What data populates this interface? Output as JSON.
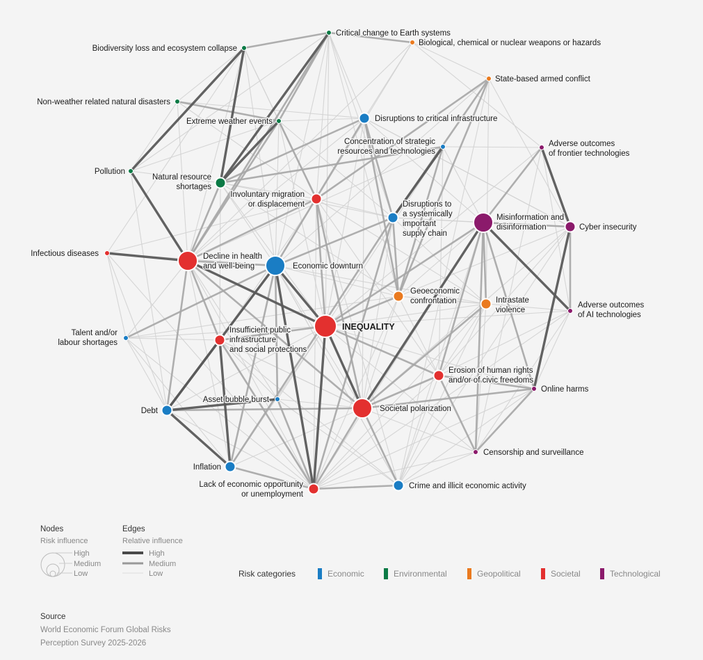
{
  "colors": {
    "Economic": "#1a7dc4",
    "Environmental": "#0b7a45",
    "Geopolitical": "#ea7a1f",
    "Societal": "#e3302f",
    "Technological": "#8b1a6b"
  },
  "nodes": [
    {
      "id": "critical-change",
      "lines": [
        "Critical change to Earth systems"
      ],
      "cat": "Environmental",
      "size": "low"
    },
    {
      "id": "biological",
      "lines": [
        "Biological, chemical or nuclear weapons or hazards"
      ],
      "cat": "Geopolitical",
      "size": "low"
    },
    {
      "id": "biodiversity",
      "lines": [
        "Biodiversity loss and ecosystem collapse"
      ],
      "cat": "Environmental",
      "size": "low"
    },
    {
      "id": "state-conflict",
      "lines": [
        "State-based armed conflict"
      ],
      "cat": "Geopolitical",
      "size": "low"
    },
    {
      "id": "non-weather",
      "lines": [
        "Non-weather related natural disasters"
      ],
      "cat": "Environmental",
      "size": "low"
    },
    {
      "id": "disruptions-infra",
      "lines": [
        "Disruptions to critical infrastructure"
      ],
      "cat": "Economic",
      "size": "medium"
    },
    {
      "id": "extreme-weather",
      "lines": [
        "Extreme weather events"
      ],
      "cat": "Environmental",
      "size": "low"
    },
    {
      "id": "concentration",
      "lines": [
        "Concentration of strategic",
        "resources and technologies"
      ],
      "cat": "Economic",
      "size": "low"
    },
    {
      "id": "frontier-tech",
      "lines": [
        "Adverse outcomes",
        "of frontier technologies"
      ],
      "cat": "Technological",
      "size": "low"
    },
    {
      "id": "pollution",
      "lines": [
        "Pollution"
      ],
      "cat": "Environmental",
      "size": "low"
    },
    {
      "id": "natural-resource",
      "lines": [
        "Natural resource",
        "shortages"
      ],
      "cat": "Environmental",
      "size": "medium"
    },
    {
      "id": "migration",
      "lines": [
        "Involuntary migration",
        "or displacement"
      ],
      "cat": "Societal",
      "size": "medium"
    },
    {
      "id": "supply-chain",
      "lines": [
        "Disruptions to",
        "a systemically",
        "important",
        "supply chain"
      ],
      "cat": "Economic",
      "size": "medium"
    },
    {
      "id": "misinformation",
      "lines": [
        "Misinformation and",
        "disinformation"
      ],
      "cat": "Technological",
      "size": "high"
    },
    {
      "id": "cyber",
      "lines": [
        "Cyber insecurity"
      ],
      "cat": "Technological",
      "size": "medium"
    },
    {
      "id": "infectious",
      "lines": [
        "Infectious diseases"
      ],
      "cat": "Societal",
      "size": "low"
    },
    {
      "id": "health",
      "lines": [
        "Decline in health",
        "and well-being"
      ],
      "cat": "Societal",
      "size": "high"
    },
    {
      "id": "downturn",
      "lines": [
        "Economic downturn"
      ],
      "cat": "Economic",
      "size": "high"
    },
    {
      "id": "geoeconomic",
      "lines": [
        "Geoeconomic",
        "confrontation"
      ],
      "cat": "Geopolitical",
      "size": "medium"
    },
    {
      "id": "intrastate",
      "lines": [
        "Intrastate",
        "violence"
      ],
      "cat": "Geopolitical",
      "size": "medium"
    },
    {
      "id": "ai-outcomes",
      "lines": [
        "Adverse outcomes",
        "of AI technologies"
      ],
      "cat": "Technological",
      "size": "low"
    },
    {
      "id": "talent",
      "lines": [
        "Talent and/or",
        "labour shortages"
      ],
      "cat": "Economic",
      "size": "low"
    },
    {
      "id": "public-infra",
      "lines": [
        "Insufficient public",
        "infrastructure",
        "and social protections"
      ],
      "cat": "Societal",
      "size": "medium"
    },
    {
      "id": "inequality",
      "lines": [
        "INEQUALITY"
      ],
      "cat": "Societal",
      "size": "center"
    },
    {
      "id": "human-rights",
      "lines": [
        "Erosion of human rights",
        "and/or of civic freedoms"
      ],
      "cat": "Societal",
      "size": "medium"
    },
    {
      "id": "online-harms",
      "lines": [
        "Online harms"
      ],
      "cat": "Technological",
      "size": "low"
    },
    {
      "id": "asset-bubble",
      "lines": [
        "Asset bubble burst"
      ],
      "cat": "Economic",
      "size": "low"
    },
    {
      "id": "debt",
      "lines": [
        "Debt"
      ],
      "cat": "Economic",
      "size": "medium"
    },
    {
      "id": "polarization",
      "lines": [
        "Societal polarization"
      ],
      "cat": "Societal",
      "size": "high"
    },
    {
      "id": "censorship",
      "lines": [
        "Censorship and surveillance"
      ],
      "cat": "Technological",
      "size": "low"
    },
    {
      "id": "inflation",
      "lines": [
        "Inflation"
      ],
      "cat": "Economic",
      "size": "medium"
    },
    {
      "id": "crime",
      "lines": [
        "Crime and illicit economic activity"
      ],
      "cat": "Economic",
      "size": "medium"
    },
    {
      "id": "lack-opportunity",
      "lines": [
        "Lack of economic opportunity",
        "or unemployment"
      ],
      "cat": "Societal",
      "size": "medium"
    }
  ],
  "edges": [
    [
      "health",
      "infectious",
      "high"
    ],
    [
      "health",
      "pollution",
      "high"
    ],
    [
      "biodiversity",
      "natural-resource",
      "high"
    ],
    [
      "biodiversity",
      "pollution",
      "high"
    ],
    [
      "critical-change",
      "natural-resource",
      "high"
    ],
    [
      "misinformation",
      "ai-outcomes",
      "high"
    ],
    [
      "misinformation",
      "polarization",
      "high"
    ],
    [
      "debt",
      "public-infra",
      "high"
    ],
    [
      "debt",
      "inflation",
      "high"
    ],
    [
      "inflation",
      "public-infra",
      "high"
    ],
    [
      "inequality",
      "lack-opportunity",
      "high"
    ],
    [
      "inequality",
      "downturn",
      "high"
    ],
    [
      "inequality",
      "polarization",
      "high"
    ],
    [
      "inequality",
      "health",
      "high"
    ],
    [
      "downturn",
      "lack-opportunity",
      "high"
    ],
    [
      "downturn",
      "debt",
      "high"
    ],
    [
      "supply-chain",
      "concentration",
      "high"
    ],
    [
      "cyber",
      "online-harms",
      "high"
    ],
    [
      "cyber",
      "frontier-tech",
      "high"
    ],
    [
      "extreme-weather",
      "natural-resource",
      "high"
    ],
    [
      "debt",
      "asset-bubble",
      "high"
    ],
    [
      "downturn",
      "health",
      "medium"
    ],
    [
      "biodiversity",
      "critical-change",
      "medium"
    ],
    [
      "critical-change",
      "extreme-weather",
      "medium"
    ],
    [
      "critical-change",
      "health",
      "medium"
    ],
    [
      "critical-change",
      "biological",
      "medium"
    ],
    [
      "state-conflict",
      "supply-chain",
      "medium"
    ],
    [
      "state-conflict",
      "migration",
      "medium"
    ],
    [
      "state-conflict",
      "geoeconomic",
      "medium"
    ],
    [
      "disruptions-infra",
      "geoeconomic",
      "medium"
    ],
    [
      "disruptions-infra",
      "supply-chain",
      "medium"
    ],
    [
      "geoeconomic",
      "supply-chain",
      "medium"
    ],
    [
      "geoeconomic",
      "concentration",
      "medium"
    ],
    [
      "geoeconomic",
      "inequality",
      "medium"
    ],
    [
      "migration",
      "inequality",
      "medium"
    ],
    [
      "migration",
      "health",
      "medium"
    ],
    [
      "migration",
      "polarization",
      "medium"
    ],
    [
      "public-infra",
      "inequality",
      "medium"
    ],
    [
      "public-infra",
      "health",
      "medium"
    ],
    [
      "public-infra",
      "downturn",
      "medium"
    ],
    [
      "misinformation",
      "human-rights",
      "medium"
    ],
    [
      "misinformation",
      "cyber",
      "medium"
    ],
    [
      "misinformation",
      "intrastate",
      "medium"
    ],
    [
      "misinformation",
      "censorship",
      "medium"
    ],
    [
      "misinformation",
      "inequality",
      "medium"
    ],
    [
      "misinformation",
      "frontier-tech",
      "medium"
    ],
    [
      "human-rights",
      "polarization",
      "medium"
    ],
    [
      "human-rights",
      "censorship",
      "medium"
    ],
    [
      "human-rights",
      "online-harms",
      "medium"
    ],
    [
      "human-rights",
      "inequality",
      "medium"
    ],
    [
      "polarization",
      "health",
      "medium"
    ],
    [
      "polarization",
      "intrastate",
      "medium"
    ],
    [
      "polarization",
      "online-harms",
      "medium"
    ],
    [
      "polarization",
      "crime",
      "medium"
    ],
    [
      "polarization",
      "debt",
      "medium"
    ],
    [
      "polarization",
      "lack-opportunity",
      "medium"
    ],
    [
      "inflation",
      "downturn",
      "medium"
    ],
    [
      "inflation",
      "lack-opportunity",
      "medium"
    ],
    [
      "lack-opportunity",
      "crime",
      "medium"
    ],
    [
      "lack-opportunity",
      "public-infra",
      "medium"
    ],
    [
      "lack-opportunity",
      "asset-bubble",
      "medium"
    ],
    [
      "asset-bubble",
      "downturn",
      "medium"
    ],
    [
      "debt",
      "health",
      "medium"
    ],
    [
      "talent",
      "downturn",
      "medium"
    ],
    [
      "extreme-weather",
      "non-weather",
      "medium"
    ],
    [
      "extreme-weather",
      "health",
      "medium"
    ],
    [
      "extreme-weather",
      "migration",
      "medium"
    ],
    [
      "natural-resource",
      "disruptions-infra",
      "medium"
    ],
    [
      "natural-resource",
      "health",
      "medium"
    ],
    [
      "natural-resource",
      "concentration",
      "medium"
    ],
    [
      "disruptions-infra",
      "downturn",
      "medium"
    ],
    [
      "supply-chain",
      "downturn",
      "medium"
    ],
    [
      "supply-chain",
      "inflation",
      "medium"
    ],
    [
      "supply-chain",
      "lack-opportunity",
      "medium"
    ],
    [
      "online-harms",
      "censorship",
      "medium"
    ],
    [
      "ai-outcomes",
      "cyber",
      "medium"
    ],
    [
      "online-harms",
      "misinformation",
      "medium"
    ],
    [
      "state-conflict",
      "biological",
      "low"
    ],
    [
      "state-conflict",
      "crime",
      "low"
    ],
    [
      "state-conflict",
      "intrastate",
      "low"
    ],
    [
      "state-conflict",
      "downturn",
      "low"
    ],
    [
      "state-conflict",
      "cyber",
      "low"
    ],
    [
      "biological",
      "health",
      "low"
    ],
    [
      "biological",
      "migration",
      "low"
    ],
    [
      "biological",
      "disruptions-infra",
      "low"
    ],
    [
      "biological",
      "frontier-tech",
      "low"
    ],
    [
      "non-weather",
      "disruptions-infra",
      "low"
    ],
    [
      "non-weather",
      "migration",
      "low"
    ],
    [
      "non-weather",
      "health",
      "low"
    ],
    [
      "non-weather",
      "pollution",
      "low"
    ],
    [
      "pollution",
      "critical-change",
      "low"
    ],
    [
      "pollution",
      "natural-resource",
      "low"
    ],
    [
      "infectious",
      "downturn",
      "low"
    ],
    [
      "infectious",
      "migration",
      "low"
    ],
    [
      "infectious",
      "talent",
      "low"
    ],
    [
      "infectious",
      "biodiversity",
      "low"
    ],
    [
      "infectious",
      "lack-opportunity",
      "low"
    ],
    [
      "talent",
      "lack-opportunity",
      "low"
    ],
    [
      "talent",
      "inflation",
      "low"
    ],
    [
      "talent",
      "public-infra",
      "low"
    ],
    [
      "talent",
      "health",
      "low"
    ],
    [
      "talent",
      "geoeconomic",
      "low"
    ],
    [
      "concentration",
      "inequality",
      "low"
    ],
    [
      "concentration",
      "frontier-tech",
      "low"
    ],
    [
      "concentration",
      "misinformation",
      "low"
    ],
    [
      "concentration",
      "human-rights",
      "low"
    ],
    [
      "frontier-tech",
      "ai-outcomes",
      "low"
    ],
    [
      "frontier-tech",
      "inequality",
      "low"
    ],
    [
      "frontier-tech",
      "censorship",
      "low"
    ],
    [
      "cyber",
      "disruptions-infra",
      "low"
    ],
    [
      "cyber",
      "supply-chain",
      "low"
    ],
    [
      "cyber",
      "crime",
      "low"
    ],
    [
      "cyber",
      "geoeconomic",
      "low"
    ],
    [
      "ai-outcomes",
      "inequality",
      "low"
    ],
    [
      "ai-outcomes",
      "online-harms",
      "low"
    ],
    [
      "ai-outcomes",
      "lack-opportunity",
      "low"
    ],
    [
      "ai-outcomes",
      "censorship",
      "low"
    ],
    [
      "intrastate",
      "migration",
      "low"
    ],
    [
      "intrastate",
      "crime",
      "low"
    ],
    [
      "intrastate",
      "human-rights",
      "low"
    ],
    [
      "intrastate",
      "inequality",
      "low"
    ],
    [
      "intrastate",
      "lack-opportunity",
      "low"
    ],
    [
      "intrastate",
      "censorship",
      "low"
    ],
    [
      "online-harms",
      "crime",
      "low"
    ],
    [
      "online-harms",
      "lack-opportunity",
      "low"
    ],
    [
      "online-harms",
      "inequality",
      "low"
    ],
    [
      "censorship",
      "polarization",
      "low"
    ],
    [
      "censorship",
      "crime",
      "low"
    ],
    [
      "crime",
      "inequality",
      "low"
    ],
    [
      "crime",
      "asset-bubble",
      "low"
    ],
    [
      "crime",
      "human-rights",
      "low"
    ],
    [
      "crime",
      "downturn",
      "low"
    ],
    [
      "debt",
      "lack-opportunity",
      "low"
    ],
    [
      "debt",
      "talent",
      "low"
    ],
    [
      "debt",
      "infectious",
      "low"
    ],
    [
      "debt",
      "pollution",
      "low"
    ],
    [
      "inflation",
      "health",
      "low"
    ],
    [
      "inflation",
      "inequality",
      "low"
    ],
    [
      "inflation",
      "polarization",
      "low"
    ],
    [
      "asset-bubble",
      "inequality",
      "low"
    ],
    [
      "asset-bubble",
      "health",
      "low"
    ],
    [
      "asset-bubble",
      "polarization",
      "low"
    ],
    [
      "health",
      "lack-opportunity",
      "low"
    ],
    [
      "health",
      "biodiversity",
      "low"
    ],
    [
      "health",
      "concentration",
      "low"
    ],
    [
      "downturn",
      "geoeconomic",
      "low"
    ],
    [
      "downturn",
      "migration",
      "low"
    ],
    [
      "downturn",
      "polarization",
      "low"
    ],
    [
      "downturn",
      "crime",
      "low"
    ],
    [
      "downturn",
      "extreme-weather",
      "low"
    ],
    [
      "downturn",
      "critical-change",
      "low"
    ],
    [
      "downturn",
      "biodiversity",
      "low"
    ],
    [
      "downturn",
      "natural-resource",
      "low"
    ],
    [
      "downturn",
      "intrastate",
      "low"
    ],
    [
      "migration",
      "public-infra",
      "low"
    ],
    [
      "migration",
      "crime",
      "low"
    ],
    [
      "migration",
      "human-rights",
      "low"
    ],
    [
      "migration",
      "supply-chain",
      "low"
    ],
    [
      "migration",
      "critical-change",
      "low"
    ],
    [
      "migration",
      "lack-opportunity",
      "low"
    ],
    [
      "extreme-weather",
      "disruptions-infra",
      "low"
    ],
    [
      "extreme-weather",
      "supply-chain",
      "low"
    ],
    [
      "extreme-weather",
      "inequality",
      "low"
    ],
    [
      "extreme-weather",
      "pollution",
      "low"
    ],
    [
      "biodiversity",
      "extreme-weather",
      "low"
    ],
    [
      "biodiversity",
      "migration",
      "low"
    ],
    [
      "biodiversity",
      "non-weather",
      "low"
    ],
    [
      "critical-change",
      "disruptions-infra",
      "low"
    ],
    [
      "critical-change",
      "supply-chain",
      "low"
    ],
    [
      "critical-change",
      "geoeconomic",
      "low"
    ],
    [
      "critical-change",
      "inequality",
      "low"
    ],
    [
      "natural-resource",
      "geoeconomic",
      "low"
    ],
    [
      "natural-resource",
      "inequality",
      "low"
    ],
    [
      "natural-resource",
      "supply-chain",
      "low"
    ],
    [
      "natural-resource",
      "migration",
      "low"
    ],
    [
      "disruptions-infra",
      "cyber",
      "low"
    ],
    [
      "disruptions-infra",
      "inequality",
      "low"
    ],
    [
      "disruptions-infra",
      "polarization",
      "low"
    ],
    [
      "disruptions-infra",
      "health",
      "low"
    ],
    [
      "supply-chain",
      "polarization",
      "low"
    ],
    [
      "supply-chain",
      "misinformation",
      "low"
    ],
    [
      "supply-chain",
      "intrastate",
      "low"
    ],
    [
      "geoeconomic",
      "misinformation",
      "low"
    ],
    [
      "geoeconomic",
      "polarization",
      "low"
    ],
    [
      "geoeconomic",
      "human-rights",
      "low"
    ],
    [
      "geoeconomic",
      "intrastate",
      "low"
    ],
    [
      "geoeconomic",
      "lack-opportunity",
      "low"
    ],
    [
      "geoeconomic",
      "ai-outcomes",
      "low"
    ],
    [
      "public-infra",
      "polarization",
      "low"
    ],
    [
      "public-infra",
      "asset-bubble",
      "low"
    ],
    [
      "public-infra",
      "crime",
      "low"
    ],
    [
      "public-infra",
      "natural-resource",
      "low"
    ],
    [
      "inequality",
      "crime",
      "low"
    ],
    [
      "inequality",
      "talent",
      "low"
    ],
    [
      "inequality",
      "debt",
      "low"
    ],
    [
      "inequality",
      "censorship",
      "low"
    ],
    [
      "misinformation",
      "crime",
      "low"
    ],
    [
      "misinformation",
      "disruptions-infra",
      "low"
    ],
    [
      "misinformation",
      "lack-opportunity",
      "low"
    ],
    [
      "human-rights",
      "lack-opportunity",
      "low"
    ],
    [
      "human-rights",
      "cyber",
      "low"
    ],
    [
      "human-rights",
      "ai-outcomes",
      "low"
    ],
    [
      "polarization",
      "cyber",
      "low"
    ],
    [
      "polarization",
      "public-infra",
      "low"
    ],
    [
      "lack-opportunity",
      "censorship",
      "low"
    ]
  ],
  "legend": {
    "nodes_title": "Nodes",
    "nodes_sub": "Risk influence",
    "node_levels": [
      "High",
      "Medium",
      "Low"
    ],
    "edges_title": "Edges",
    "edges_sub": "Relative influence",
    "edge_levels": [
      "High",
      "Medium",
      "Low"
    ],
    "categories_title": "Risk categories",
    "categories": [
      "Economic",
      "Environmental",
      "Geopolitical",
      "Societal",
      "Technological"
    ]
  },
  "source": {
    "title": "Source",
    "line1": "World Economic Forum Global Risks",
    "line2": "Perception Survey 2025-2026"
  }
}
